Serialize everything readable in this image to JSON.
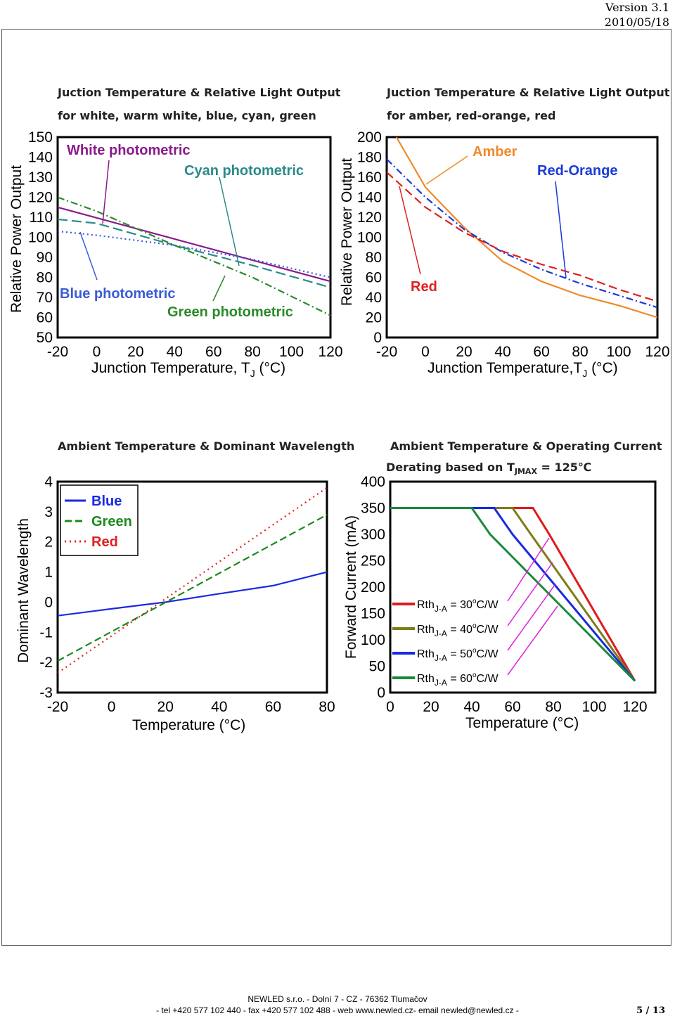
{
  "header": {
    "version": "Version 3.1",
    "date": "2010/05/18"
  },
  "footer": {
    "line1": "NEWLED s.r.o. - Dolní 7 - CZ - 76362 Tlumačov",
    "line2": "- tel +420 577 102 440 - fax +420 577 102 488 - web www.newled.cz- email newled@newled.cz -",
    "page": "5 / 13"
  },
  "chart_data": [
    {
      "type": "line",
      "title": "Juction Temperature & Relative Light Output",
      "subtitle": "for white, warm white, blue, cyan, green",
      "xlabel": "Junction Temperature, T",
      "xlabel_sub": "J",
      "xlabel_unit": " (°C)",
      "ylabel": "Relative Power Output",
      "xlim": [
        -20,
        120
      ],
      "ylim": [
        50,
        150
      ],
      "xticks": [
        -20,
        0,
        20,
        40,
        60,
        80,
        100,
        120
      ],
      "yticks": [
        50,
        60,
        70,
        80,
        90,
        100,
        110,
        120,
        130,
        140,
        150
      ],
      "series": [
        {
          "name": "White photometric",
          "color": "#8b1a8b",
          "dash": "",
          "x": [
            -20,
            120
          ],
          "y": [
            115,
            78
          ]
        },
        {
          "name": "Cyan photometric",
          "color": "#2a8a8a",
          "dash": "14,6",
          "x": [
            -20,
            0,
            40,
            80,
            120
          ],
          "y": [
            109,
            107,
            96,
            86,
            75
          ]
        },
        {
          "name": "Blue photometric",
          "color": "#3a5bd9",
          "dash": "2,4",
          "x": [
            -20,
            0,
            40,
            80,
            120
          ],
          "y": [
            103,
            101,
            96,
            89,
            80
          ]
        },
        {
          "name": "Green photometric",
          "color": "#2a8a2a",
          "dash": "10,4,2,4",
          "x": [
            -20,
            0,
            40,
            80,
            120
          ],
          "y": [
            120,
            113,
            96,
            80,
            61
          ]
        }
      ]
    },
    {
      "type": "line",
      "title": "Juction Temperature & Relative Light Output",
      "subtitle": "for amber, red-orange, red",
      "xlabel": "Junction Temperature,T",
      "xlabel_sub": "J",
      "xlabel_unit": " (°C)",
      "ylabel": "Relative Power Output",
      "xlim": [
        -20,
        120
      ],
      "ylim": [
        0,
        200
      ],
      "xticks": [
        -20,
        0,
        20,
        40,
        60,
        80,
        100,
        120
      ],
      "yticks": [
        0,
        20,
        40,
        60,
        80,
        100,
        120,
        140,
        160,
        180,
        200
      ],
      "series": [
        {
          "name": "Amber",
          "color": "#f08a2a",
          "dash": "",
          "x": [
            -15,
            0,
            20,
            40,
            60,
            80,
            100,
            120
          ],
          "y": [
            200,
            150,
            110,
            76,
            56,
            42,
            32,
            20
          ]
        },
        {
          "name": "Red-Orange",
          "color": "#1a3ad9",
          "dash": "10,4,2,4",
          "x": [
            -20,
            0,
            20,
            40,
            60,
            80,
            100,
            120
          ],
          "y": [
            178,
            140,
            108,
            85,
            68,
            54,
            42,
            30
          ]
        },
        {
          "name": "Red",
          "color": "#e02020",
          "dash": "12,6",
          "x": [
            -20,
            0,
            20,
            40,
            60,
            80,
            100,
            120
          ],
          "y": [
            165,
            130,
            105,
            86,
            73,
            62,
            48,
            36
          ]
        }
      ]
    },
    {
      "type": "line",
      "title": "Ambient Temperature & Dominant Wavelength",
      "xlabel": "Temperature ",
      "xlabel_unit": "(°C)",
      "ylabel": "Dominant Wavelength",
      "xlim": [
        -20,
        80
      ],
      "ylim": [
        -3,
        4
      ],
      "xticks": [
        -20,
        0,
        20,
        40,
        60,
        80
      ],
      "yticks": [
        -3,
        -2,
        -1,
        0,
        1,
        2,
        3,
        4
      ],
      "legend": "top-left",
      "series": [
        {
          "name": "Blue",
          "color": "#1a2ae0",
          "dash": "",
          "x": [
            -20,
            0,
            20,
            40,
            60,
            80
          ],
          "y": [
            -0.45,
            -0.22,
            0,
            0.28,
            0.55,
            1.0
          ]
        },
        {
          "name": "Green",
          "color": "#1a8a1a",
          "dash": "10,5",
          "x": [
            -20,
            80
          ],
          "y": [
            -1.95,
            2.9
          ]
        },
        {
          "name": "Red",
          "color": "#e02020",
          "dash": "2,5",
          "x": [
            -20,
            80
          ],
          "y": [
            -2.35,
            3.8
          ]
        }
      ]
    },
    {
      "type": "line",
      "title": "Ambient Temperature & Operating Current",
      "subtitle": "Derating based on T",
      "subtitle_sub": "JMAX",
      "subtitle_tail": " = 125℃",
      "xlabel": "Temperature ",
      "xlabel_unit": "(°C)",
      "ylabel": "Forward Current (mA)",
      "xlim": [
        0,
        130
      ],
      "ylim": [
        0,
        400
      ],
      "xticks": [
        0,
        20,
        40,
        60,
        80,
        100,
        120
      ],
      "yticks": [
        0,
        50,
        100,
        150,
        200,
        250,
        300,
        350,
        400
      ],
      "legend": "left",
      "series": [
        {
          "name": "Rth",
          "sub": "J-A",
          "value": " = 30",
          "unit": "C/W",
          "color": "#e01a1a",
          "x": [
            0,
            70,
            78,
            120
          ],
          "y": [
            350,
            350,
            300,
            22
          ]
        },
        {
          "name": "Rth",
          "sub": "J-A",
          "value": " = 40",
          "unit": "C/W",
          "color": "#7d7d1a",
          "x": [
            0,
            60,
            69,
            120
          ],
          "y": [
            350,
            350,
            300,
            22
          ]
        },
        {
          "name": "Rth",
          "sub": "J-A",
          "value": " = 50",
          "unit": "C/W",
          "color": "#1a2ae0",
          "x": [
            0,
            51,
            60,
            120
          ],
          "y": [
            350,
            350,
            300,
            22
          ]
        },
        {
          "name": "Rth",
          "sub": "J-A",
          "value": " = 60",
          "unit": "C/W",
          "color": "#1a8a3a",
          "x": [
            0,
            40,
            49,
            120
          ],
          "y": [
            350,
            350,
            300,
            22
          ]
        }
      ]
    }
  ]
}
